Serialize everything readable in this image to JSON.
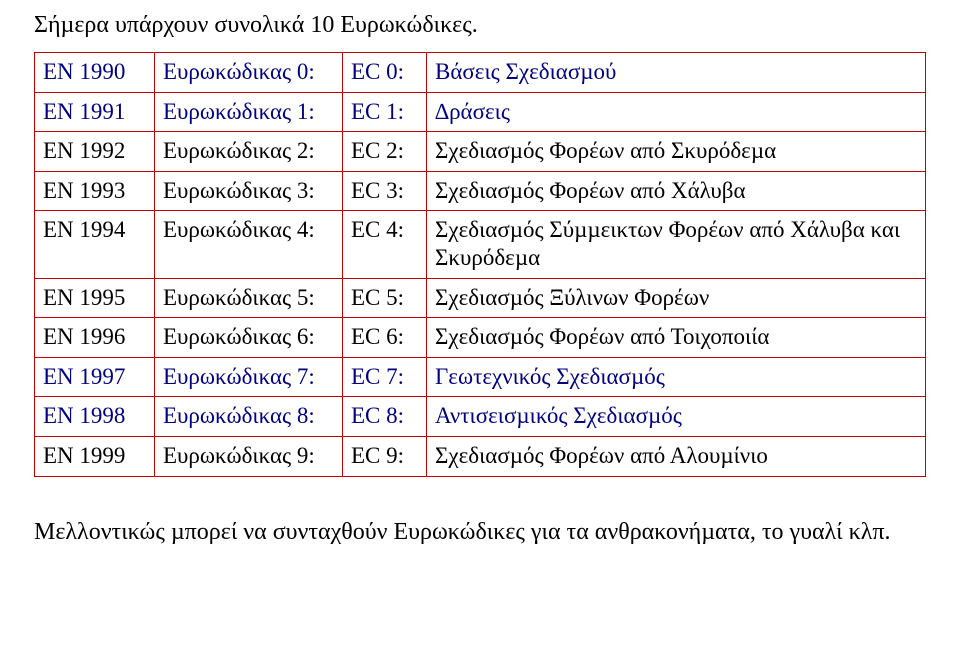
{
  "intro": "Σήµερα υπάρχουν συνολικά 10 Ευρωκώδικες.",
  "footer": "Μελλοντικώς µπορεί να συνταχθούν Ευρωκώδικες για τα ανθρακονήµατα, το γυαλί κλπ.",
  "table": {
    "border_color": "#c00000",
    "black": "#000000",
    "blue": "#000080",
    "rows": [
      {
        "c1": "EN 1990",
        "c2": "Ευρωκώδικας 0:",
        "c3": "EC 0:",
        "c4": "Βάσεις Σχεδιασµού",
        "color": "blue"
      },
      {
        "c1": "EN 1991",
        "c2": "Ευρωκώδικας 1:",
        "c3": "EC 1:",
        "c4": "∆ράσεις",
        "color": "blue"
      },
      {
        "c1": "EN 1992",
        "c2": "Ευρωκώδικας 2:",
        "c3": "EC 2:",
        "c4": "Σχεδιασµός Φορέων από Σκυρόδεµα",
        "color": "black"
      },
      {
        "c1": "EN 1993",
        "c2": "Ευρωκώδικας 3:",
        "c3": "EC 3:",
        "c4": "Σχεδιασµός Φορέων από Χάλυβα",
        "color": "black"
      },
      {
        "c1": "EN 1994",
        "c2": "Ευρωκώδικας 4:",
        "c3": "EC 4:",
        "c4": "Σχεδιασµός Σύµµεικτων Φορέων από Χάλυβα και Σκυρόδεµα",
        "color": "black"
      },
      {
        "c1": "EN 1995",
        "c2": "Ευρωκώδικας 5:",
        "c3": "EC 5:",
        "c4": "Σχεδιασµός Ξύλινων Φορέων",
        "color": "black"
      },
      {
        "c1": "EN 1996",
        "c2": "Ευρωκώδικας 6:",
        "c3": "EC 6:",
        "c4": "Σχεδιασµός Φορέων από Τοιχοποιία",
        "color": "black"
      },
      {
        "c1": "EN 1997",
        "c2": "Ευρωκώδικας 7:",
        "c3": "EC 7:",
        "c4": "Γεωτεχνικός Σχεδιασµός",
        "color": "blue"
      },
      {
        "c1": "EN 1998",
        "c2": "Ευρωκώδικας 8:",
        "c3": "EC 8:",
        "c4": "Αντισεισµικός Σχεδιασµός",
        "color": "blue"
      },
      {
        "c1": "EN 1999",
        "c2": "Ευρωκώδικας 9:",
        "c3": "EC 9:",
        "c4": "Σχεδιασµός Φορέων από Αλουµίνιο",
        "color": "black"
      }
    ]
  }
}
